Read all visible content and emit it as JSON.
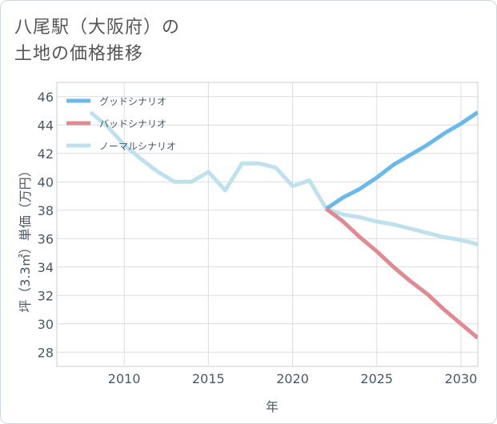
{
  "title_line1": "八尾駅（大阪府）の",
  "title_line2": "土地の価格推移",
  "chart_data": {
    "type": "line",
    "xlabel": "年",
    "ylabel": "坪（3.3㎡）単価（万円）",
    "xlim": [
      2006,
      2031
    ],
    "ylim": [
      27,
      47
    ],
    "xticks": [
      2010,
      2015,
      2020,
      2025,
      2030
    ],
    "yticks": [
      28,
      30,
      32,
      34,
      36,
      38,
      40,
      42,
      44,
      46
    ],
    "legend_position": "top-left",
    "series": [
      {
        "name": "グッドシナリオ",
        "color": "#6bb8ea",
        "x": [
          2022,
          2023,
          2024,
          2025,
          2026,
          2027,
          2028,
          2029,
          2030,
          2031
        ],
        "y": [
          38.1,
          38.9,
          39.5,
          40.3,
          41.2,
          41.9,
          42.6,
          43.4,
          44.1,
          44.9
        ]
      },
      {
        "name": "バッドシナリオ",
        "color": "#de8b93",
        "x": [
          2022,
          2023,
          2024,
          2025,
          2026,
          2027,
          2028,
          2029,
          2030,
          2031
        ],
        "y": [
          38.1,
          37.2,
          36.1,
          35.1,
          34.0,
          33.0,
          32.1,
          31.0,
          30.0,
          29.0
        ]
      },
      {
        "name": "ノーマルシナリオ",
        "color": "#bfe1ee",
        "x": [
          2008,
          2009,
          2010,
          2011,
          2012,
          2013,
          2014,
          2015,
          2016,
          2017,
          2018,
          2019,
          2020,
          2021,
          2022,
          2023,
          2024,
          2025,
          2026,
          2027,
          2028,
          2029,
          2030,
          2031
        ],
        "y": [
          44.9,
          43.9,
          42.6,
          41.6,
          40.7,
          40.0,
          40.0,
          40.7,
          39.4,
          41.3,
          41.3,
          41.0,
          39.7,
          40.1,
          38.1,
          37.7,
          37.5,
          37.2,
          37.0,
          36.7,
          36.4,
          36.1,
          35.9,
          35.6
        ]
      }
    ]
  }
}
